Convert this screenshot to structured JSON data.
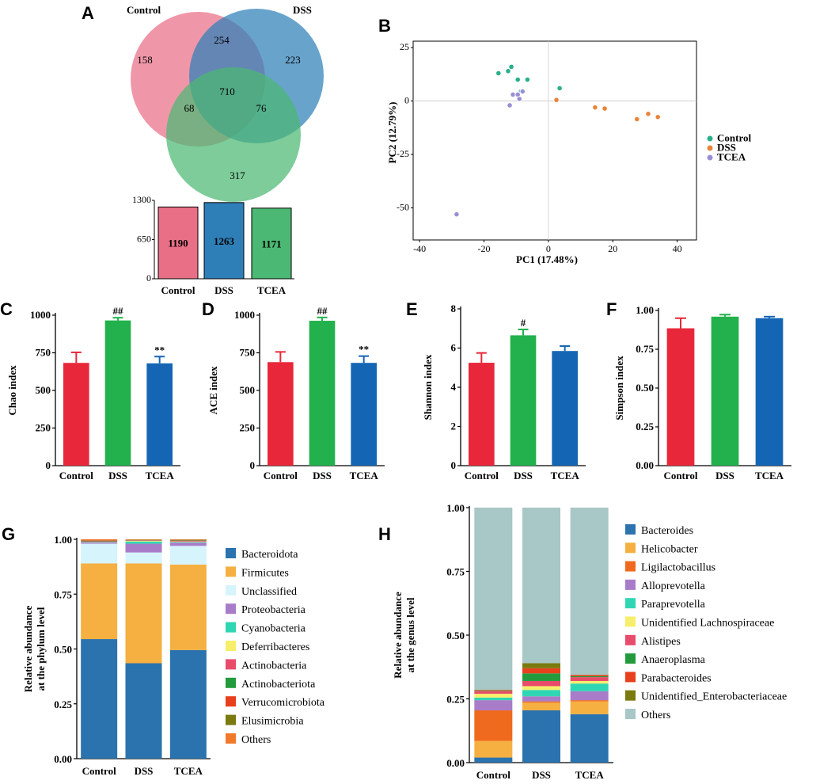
{
  "panels": {
    "A": "A",
    "B": "B",
    "C": "C",
    "D": "D",
    "E": "E",
    "F": "F",
    "G": "G",
    "H": "H"
  },
  "colors": {
    "control": "#e8283a",
    "dss": "#22b14c",
    "tcea": "#1565b5",
    "venn_control": "#e96f86",
    "venn_dss": "#2e7fb8",
    "venn_tcea": "#4bb873",
    "pca_control": "#28b08a",
    "pca_dss": "#e8853a",
    "pca_tcea": "#9b8ed6"
  },
  "chart_data": [
    {
      "id": "A_venn",
      "type": "venn",
      "sets": [
        "Control",
        "DSS",
        "TCEA"
      ],
      "regions": {
        "control_only": "158",
        "dss_only": "223",
        "tcea_only": "317",
        "control_dss": "254",
        "control_tcea": "68",
        "dss_tcea": "76",
        "all": "710"
      }
    },
    {
      "id": "A_bar",
      "type": "bar",
      "categories": [
        "Control",
        "DSS",
        "TCEA"
      ],
      "values": [
        1190,
        1263,
        1171
      ],
      "labels": [
        "1190",
        "1263",
        "1171"
      ],
      "ylim": [
        0,
        1300
      ],
      "yticks": [
        "0",
        "650",
        "1300"
      ],
      "colors": [
        "#e96f86",
        "#2e7fb8",
        "#4bb873"
      ]
    },
    {
      "id": "B_pca",
      "type": "scatter",
      "xlabel": "PC1 (17.48%)",
      "ylabel": "PC2 (12.79%)",
      "xlim": [
        -42,
        46
      ],
      "ylim": [
        -65,
        28
      ],
      "xticks": [
        -40,
        -20,
        0,
        20,
        40
      ],
      "yticks": [
        25,
        0,
        -25,
        -50
      ],
      "series": [
        {
          "name": "Control",
          "color": "#28b08a",
          "points": [
            [
              -15.5,
              13
            ],
            [
              -12.5,
              14
            ],
            [
              -11.5,
              16
            ],
            [
              -9.5,
              10
            ],
            [
              -6.5,
              10
            ],
            [
              -8.5,
              4.5
            ],
            [
              3.5,
              6
            ]
          ]
        },
        {
          "name": "DSS",
          "color": "#e8853a",
          "points": [
            [
              2.5,
              0.5
            ],
            [
              14.5,
              -3
            ],
            [
              17.5,
              -3.5
            ],
            [
              27.5,
              -8.5
            ],
            [
              31,
              -6
            ],
            [
              34,
              -7.5
            ]
          ]
        },
        {
          "name": "TCEA",
          "color": "#9b8ed6",
          "points": [
            [
              -12,
              -2
            ],
            [
              -11,
              3
            ],
            [
              -9.5,
              3
            ],
            [
              -9,
              1
            ],
            [
              -8,
              4.5
            ],
            [
              -28.5,
              -53
            ]
          ]
        }
      ]
    },
    {
      "id": "C_chao",
      "type": "bar",
      "ylabel": "Chao index",
      "categories": [
        "Control",
        "DSS",
        "TCEA"
      ],
      "values": [
        683,
        965,
        680
      ],
      "errors": [
        70,
        18,
        45
      ],
      "ylim": [
        0,
        1000
      ],
      "yticks": [
        "0",
        "250",
        "500",
        "750",
        "1000"
      ],
      "annotations": [
        "",
        "##",
        "**"
      ]
    },
    {
      "id": "D_ace",
      "type": "bar",
      "ylabel": "ACE index",
      "categories": [
        "Control",
        "DSS",
        "TCEA"
      ],
      "values": [
        688,
        963,
        683
      ],
      "errors": [
        68,
        22,
        45
      ],
      "ylim": [
        0,
        1000
      ],
      "yticks": [
        "0",
        "250",
        "500",
        "750",
        "1000"
      ],
      "annotations": [
        "",
        "##",
        "**"
      ]
    },
    {
      "id": "E_shannon",
      "type": "bar",
      "ylabel": "Shannon index",
      "categories": [
        "Control",
        "DSS",
        "TCEA"
      ],
      "values": [
        5.25,
        6.65,
        5.85
      ],
      "errors": [
        0.5,
        0.3,
        0.25
      ],
      "ylim": [
        0,
        8
      ],
      "yticks": [
        "0",
        "2",
        "4",
        "6",
        "8"
      ],
      "annotations": [
        "",
        "#",
        ""
      ]
    },
    {
      "id": "F_simpson",
      "type": "bar",
      "ylabel": "Simpson index",
      "categories": [
        "Control",
        "DSS",
        "TCEA"
      ],
      "values": [
        0.885,
        0.96,
        0.95
      ],
      "errors": [
        0.065,
        0.013,
        0.01
      ],
      "ylim": [
        0,
        1
      ],
      "yticks": [
        "0.00",
        "0.25",
        "0.50",
        "0.75",
        "1.00"
      ],
      "annotations": [
        "",
        "",
        ""
      ]
    },
    {
      "id": "G_phylum",
      "type": "stacked-bar",
      "ylabel": "Relative abundance at the phylum level",
      "ylabel_line1": "Relative abundance",
      "ylabel_line2": "at the phylum level",
      "categories": [
        "Control",
        "DSS",
        "TCEA"
      ],
      "ylim": [
        0,
        1
      ],
      "yticks": [
        "0.00",
        "0.25",
        "0.50",
        "0.75",
        "1.00"
      ],
      "series": [
        {
          "name": "Bacteroidota",
          "color": "#2b73ae",
          "values": [
            0.545,
            0.435,
            0.495
          ]
        },
        {
          "name": "Firmicutes",
          "color": "#f5b041",
          "values": [
            0.345,
            0.455,
            0.39
          ]
        },
        {
          "name": "Unclassified",
          "color": "#d6f4fb",
          "values": [
            0.09,
            0.05,
            0.085
          ]
        },
        {
          "name": "Proteobacteria",
          "color": "#a97cc9",
          "values": [
            0.005,
            0.04,
            0.015
          ]
        },
        {
          "name": "Cyanobacteria",
          "color": "#2fd6b3",
          "values": [
            0.002,
            0.01,
            0.003
          ]
        },
        {
          "name": "Deferribacteres",
          "color": "#f7ef6b",
          "values": [
            0.001,
            0.003,
            0.002
          ]
        },
        {
          "name": "Actinobacteria",
          "color": "#e94b6a",
          "values": [
            0.003,
            0.002,
            0.003
          ]
        },
        {
          "name": "Actinobacteriota",
          "color": "#239b3c",
          "values": [
            0.002,
            0.001,
            0.002
          ]
        },
        {
          "name": "Verrucomicrobiota",
          "color": "#e8401c",
          "values": [
            0.002,
            0.001,
            0.002
          ]
        },
        {
          "name": "Elusimicrobia",
          "color": "#7a7a0f",
          "values": [
            0.001,
            0.001,
            0.001
          ]
        },
        {
          "name": "Others",
          "color": "#f07a2a",
          "values": [
            0.004,
            0.002,
            0.002
          ]
        }
      ]
    },
    {
      "id": "H_genus",
      "type": "stacked-bar",
      "ylabel": "Relative abundance at the genus level",
      "ylabel_line1": "Relative abundance",
      "ylabel_line2": "at the genus level",
      "categories": [
        "Control",
        "DSS",
        "TCEA"
      ],
      "ylim": [
        0,
        1
      ],
      "yticks": [
        "0.00",
        "0.25",
        "0.50",
        "0.75",
        "1.00"
      ],
      "series": [
        {
          "name": "Bacteroides",
          "color": "#2b73ae",
          "values": [
            0.02,
            0.205,
            0.19
          ]
        },
        {
          "name": "Helicobacter",
          "color": "#f5b041",
          "values": [
            0.065,
            0.03,
            0.05
          ]
        },
        {
          "name": "Ligilactobacillus",
          "color": "#ef6a1e",
          "values": [
            0.12,
            0.005,
            0.005
          ]
        },
        {
          "name": "Alloprevotella",
          "color": "#a97cc9",
          "values": [
            0.04,
            0.02,
            0.035
          ]
        },
        {
          "name": "Paraprevotella",
          "color": "#2fd6b3",
          "values": [
            0.01,
            0.025,
            0.03
          ]
        },
        {
          "name": "Unidentified Lachnospiraceae",
          "color": "#f7ef6b",
          "values": [
            0.015,
            0.015,
            0.01
          ]
        },
        {
          "name": "Alistipes",
          "color": "#e94b6a",
          "values": [
            0.01,
            0.02,
            0.015
          ]
        },
        {
          "name": "Anaeroplasma",
          "color": "#239b3c",
          "values": [
            0.002,
            0.03,
            0.004
          ]
        },
        {
          "name": "Parabacteroides",
          "color": "#e8401c",
          "values": [
            0.003,
            0.02,
            0.005
          ]
        },
        {
          "name": "Unidentified_Enterobacteriaceae",
          "color": "#7a7a0f",
          "values": [
            0.001,
            0.02,
            0.001
          ]
        },
        {
          "name": "Others",
          "color": "#a8c7c7",
          "values": [
            0.714,
            0.61,
            0.655
          ]
        }
      ]
    }
  ]
}
